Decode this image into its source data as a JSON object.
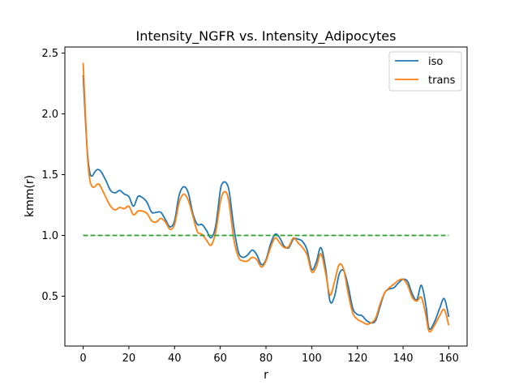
{
  "chart_data": {
    "type": "line",
    "title": "Intensity_NGFR vs. Intensity_Adipocytes",
    "xlabel": "r",
    "ylabel": "kmm(r)",
    "xlim": [
      -8,
      168
    ],
    "ylim": [
      0.09,
      2.55
    ],
    "xticks": [
      0,
      20,
      40,
      60,
      80,
      100,
      120,
      140,
      160
    ],
    "yticks": [
      0.5,
      1.0,
      1.5,
      2.0,
      2.5
    ],
    "ytick_labels": [
      "0.5",
      "1.0",
      "1.5",
      "2.0",
      "2.5"
    ],
    "grid": false,
    "legend_position": "top-right",
    "series": [
      {
        "name": "iso",
        "color": "#1f77b4",
        "style": "solid",
        "x": [
          0,
          1,
          2,
          3,
          4,
          5,
          6,
          7,
          8,
          10,
          12,
          14,
          16,
          18,
          20,
          22,
          24,
          26,
          28,
          30,
          32,
          34,
          36,
          38,
          40,
          42,
          44,
          46,
          48,
          50,
          52,
          54,
          56,
          58,
          60,
          61,
          62,
          63,
          64,
          66,
          68,
          70,
          72,
          74,
          76,
          78,
          80,
          82,
          84,
          86,
          88,
          90,
          92,
          94,
          96,
          98,
          100,
          102,
          104,
          106,
          108,
          110,
          112,
          114,
          116,
          118,
          120,
          122,
          124,
          126,
          128,
          130,
          132,
          134,
          136,
          138,
          140,
          142,
          144,
          146,
          148,
          150,
          151,
          152,
          154,
          156,
          158,
          160
        ],
        "y": [
          2.32,
          1.95,
          1.65,
          1.51,
          1.49,
          1.52,
          1.54,
          1.54,
          1.52,
          1.45,
          1.37,
          1.35,
          1.37,
          1.34,
          1.32,
          1.24,
          1.32,
          1.31,
          1.27,
          1.19,
          1.19,
          1.19,
          1.13,
          1.07,
          1.12,
          1.33,
          1.4,
          1.35,
          1.18,
          1.09,
          1.09,
          1.04,
          0.98,
          1.08,
          1.37,
          1.43,
          1.44,
          1.42,
          1.35,
          1.06,
          0.86,
          0.82,
          0.84,
          0.88,
          0.84,
          0.76,
          0.8,
          0.93,
          1.01,
          0.98,
          0.91,
          0.9,
          0.97,
          0.97,
          0.95,
          0.88,
          0.72,
          0.78,
          0.9,
          0.74,
          0.46,
          0.5,
          0.68,
          0.71,
          0.58,
          0.4,
          0.35,
          0.34,
          0.3,
          0.28,
          0.3,
          0.42,
          0.53,
          0.56,
          0.57,
          0.61,
          0.64,
          0.62,
          0.52,
          0.47,
          0.59,
          0.42,
          0.26,
          0.23,
          0.3,
          0.4,
          0.48,
          0.33
        ]
      },
      {
        "name": "trans",
        "color": "#ff7f0e",
        "style": "solid",
        "x": [
          0,
          1,
          2,
          3,
          4,
          5,
          6,
          7,
          8,
          10,
          12,
          14,
          16,
          18,
          20,
          22,
          24,
          26,
          28,
          30,
          32,
          34,
          36,
          38,
          40,
          42,
          44,
          46,
          48,
          50,
          52,
          54,
          56,
          58,
          60,
          61,
          62,
          63,
          64,
          66,
          68,
          70,
          72,
          74,
          76,
          78,
          80,
          82,
          84,
          86,
          88,
          90,
          92,
          94,
          96,
          98,
          100,
          102,
          104,
          106,
          108,
          110,
          112,
          114,
          116,
          118,
          120,
          122,
          124,
          126,
          128,
          130,
          132,
          134,
          136,
          138,
          140,
          142,
          144,
          146,
          148,
          150,
          151,
          152,
          154,
          156,
          158,
          160
        ],
        "y": [
          2.42,
          2.0,
          1.62,
          1.45,
          1.4,
          1.4,
          1.42,
          1.42,
          1.39,
          1.31,
          1.24,
          1.21,
          1.23,
          1.22,
          1.24,
          1.17,
          1.2,
          1.2,
          1.18,
          1.12,
          1.11,
          1.14,
          1.11,
          1.05,
          1.09,
          1.27,
          1.34,
          1.29,
          1.16,
          1.03,
          1.01,
          0.96,
          0.92,
          1.03,
          1.27,
          1.34,
          1.36,
          1.34,
          1.25,
          0.96,
          0.82,
          0.79,
          0.79,
          0.82,
          0.8,
          0.74,
          0.79,
          0.9,
          0.98,
          0.94,
          0.9,
          0.91,
          0.98,
          0.94,
          0.9,
          0.84,
          0.7,
          0.74,
          0.85,
          0.7,
          0.51,
          0.62,
          0.76,
          0.72,
          0.52,
          0.36,
          0.31,
          0.29,
          0.27,
          0.28,
          0.32,
          0.44,
          0.53,
          0.57,
          0.6,
          0.63,
          0.64,
          0.59,
          0.49,
          0.46,
          0.49,
          0.34,
          0.23,
          0.21,
          0.27,
          0.34,
          0.39,
          0.26
        ]
      },
      {
        "name": "",
        "color": "#2ca02c",
        "style": "dashed",
        "x": [
          0,
          160
        ],
        "y": [
          1.0,
          1.0
        ]
      }
    ]
  }
}
